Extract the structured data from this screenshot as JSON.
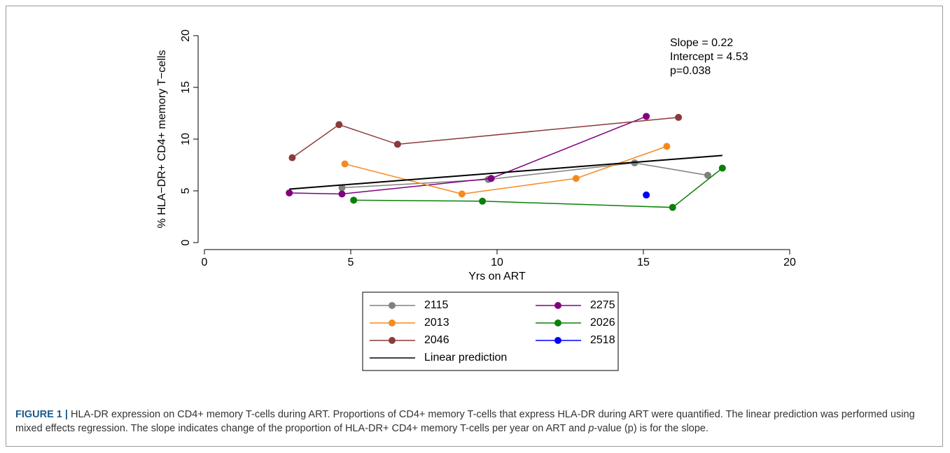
{
  "chart_data": {
    "type": "line",
    "xlabel": "Yrs on ART",
    "ylabel": "% HLA−DR+ CD4+ memory T−cells",
    "xlim": [
      0,
      20
    ],
    "xticks": [
      0,
      5,
      10,
      15,
      20
    ],
    "ylim": [
      0,
      20
    ],
    "yticks": [
      0,
      5,
      10,
      15,
      20
    ],
    "annotations": [
      "Slope = 0.22",
      "Intercept = 4.53",
      "p=0.038"
    ],
    "series": [
      {
        "name": "2115",
        "color": "#808080",
        "marker": true,
        "x": [
          4.7,
          9.7,
          14.7,
          17.2
        ],
        "values": [
          5.3,
          6.1,
          7.7,
          6.5
        ]
      },
      {
        "name": "2275",
        "color": "#800080",
        "marker": true,
        "x": [
          2.9,
          4.7,
          9.8,
          15.1
        ],
        "values": [
          4.8,
          4.7,
          6.2,
          12.2
        ]
      },
      {
        "name": "2013",
        "color": "#f58a1f",
        "marker": true,
        "x": [
          4.8,
          8.8,
          12.7,
          15.8
        ],
        "values": [
          7.6,
          4.7,
          6.2,
          9.3
        ]
      },
      {
        "name": "2026",
        "color": "#0a800a",
        "marker": true,
        "x": [
          5.1,
          9.5,
          16.0,
          17.7
        ],
        "values": [
          4.1,
          4.0,
          3.4,
          7.2
        ]
      },
      {
        "name": "2046",
        "color": "#8b3a3a",
        "marker": true,
        "x": [
          3.0,
          4.6,
          6.6,
          16.2
        ],
        "values": [
          8.2,
          11.4,
          9.5,
          12.1
        ]
      },
      {
        "name": "2518",
        "color": "#0000ff",
        "marker": true,
        "x": [
          15.1
        ],
        "values": [
          4.6
        ]
      },
      {
        "name": "Linear prediction",
        "color": "#000000",
        "marker": false,
        "x": [
          2.9,
          17.7
        ],
        "values": [
          5.17,
          8.42
        ]
      }
    ]
  },
  "caption": {
    "label": "FIGURE 1 |",
    "text_before": " HLA-DR expression on CD4+ memory T-cells during ART. Proportions of CD4+ memory T-cells that express HLA-DR during ART were quantified. The linear prediction was performed using mixed effects regression. The slope indicates change of the proportion of HLA-DR+ CD4+ memory T-cells per year on ART and ",
    "italic": "p",
    "text_after": "-value (p) is for the slope."
  }
}
